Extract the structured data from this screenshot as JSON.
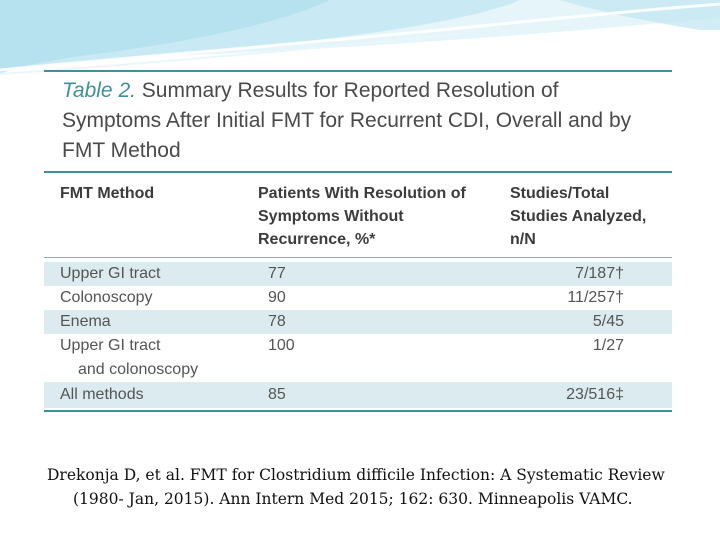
{
  "table": {
    "title_label": "Table 2.",
    "title_text": "Summary Results for Reported Resolution of Symptoms After Initial FMT for Recurrent CDI, Overall and by FMT Method",
    "headers": [
      "FMT Method",
      "Patients With Resolution of Symptoms Without Recurrence, %*",
      "Studies/Total Studies Analyzed, n/N"
    ],
    "rows": [
      {
        "method": "Upper GI tract",
        "method_cont": "",
        "pct": "77",
        "studies": "7/187†"
      },
      {
        "method": "Colonoscopy",
        "method_cont": "",
        "pct": "90",
        "studies": "11/257†"
      },
      {
        "method": "Enema",
        "method_cont": "",
        "pct": "78",
        "studies": "5/45"
      },
      {
        "method": "Upper GI tract",
        "method_cont": "and colonoscopy",
        "pct": "100",
        "studies": "1/27"
      },
      {
        "method": "All methods",
        "method_cont": "",
        "pct": "85",
        "studies": "23/516‡"
      }
    ]
  },
  "citation": {
    "line1": "Drekonja D, et al. FMT for Clostridium difficile Infection: A Systematic Review",
    "line2": "(1980- Jan, 2015).  Ann Intern Med 2015; 162: 630. Minneapolis VAMC."
  },
  "colors": {
    "accent": "#3f8f9c",
    "row_shade": "#dcebef",
    "banner": "#cdeaf3"
  }
}
